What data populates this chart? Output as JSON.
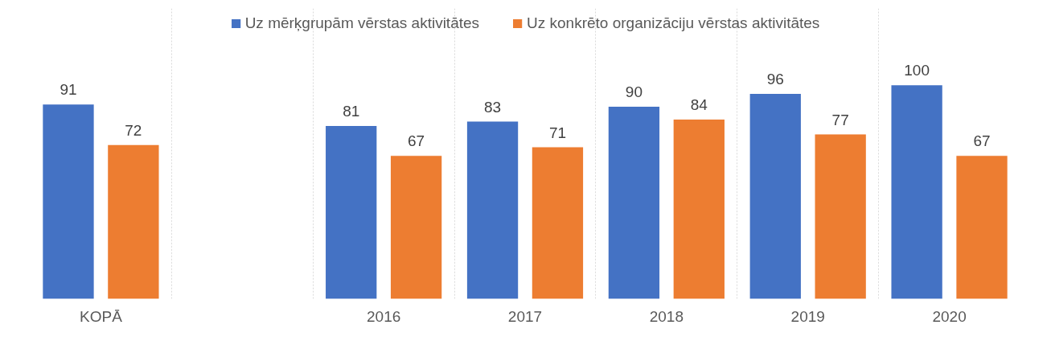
{
  "chart_data": {
    "type": "bar",
    "categories": [
      "KOPĀ",
      null,
      "2016",
      "2017",
      "2018",
      "2019",
      "2020"
    ],
    "series": [
      {
        "name": "Uz mērķgrupām vērstas aktivitātes",
        "color": "#4472c4",
        "values": [
          91,
          null,
          81,
          83,
          90,
          96,
          100
        ]
      },
      {
        "name": "Uz konkrēto organizāciju vērstas aktivitātes",
        "color": "#ed7d31",
        "values": [
          72,
          null,
          67,
          71,
          84,
          77,
          67
        ]
      }
    ],
    "data_labels": true,
    "grid": "x",
    "legend": "top"
  }
}
